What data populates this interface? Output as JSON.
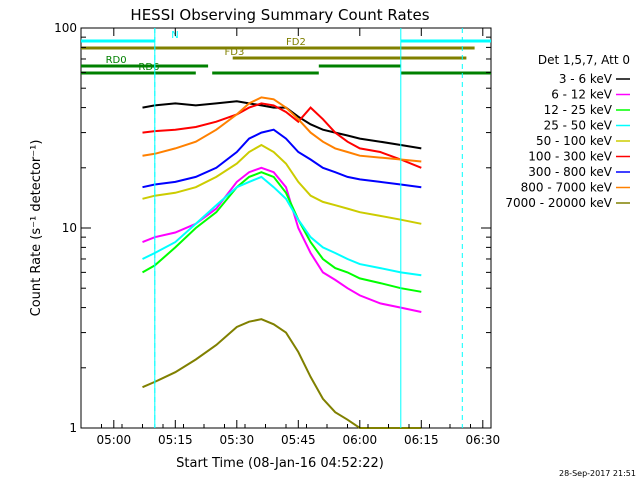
{
  "chart_data": {
    "type": "line",
    "title": "HESSI Observing Summary Count Rates",
    "xlabel": "Start Time (08-Jan-16 04:52:22)",
    "ylabel": "Count Rate (s⁻¹ detector⁻¹)",
    "yscale": "log",
    "ylim": [
      1,
      100
    ],
    "xlim": [
      "04:52",
      "06:32"
    ],
    "x_ticks": [
      "05:00",
      "05:15",
      "05:30",
      "05:45",
      "06:00",
      "06:15",
      "06:30"
    ],
    "y_ticks": [
      "1",
      "10",
      "100"
    ],
    "timestamp": "28-Sep-2017 21:51",
    "legend_header": "Det 1,5,7, Att 0",
    "x_times": [
      "05:07",
      "05:10",
      "05:15",
      "05:20",
      "05:25",
      "05:30",
      "05:33",
      "05:36",
      "05:39",
      "05:42",
      "05:45",
      "05:48",
      "05:51",
      "05:54",
      "05:57",
      "06:00",
      "06:05",
      "06:10",
      "06:15"
    ],
    "series": [
      {
        "name": "3 - 6 keV",
        "color": "#000000",
        "values": [
          40,
          41,
          42,
          41,
          42,
          43,
          42,
          41,
          40,
          40,
          36,
          33,
          31,
          30,
          29,
          28,
          27,
          26,
          25
        ]
      },
      {
        "name": "6 - 12 keV",
        "color": "#ff00ff",
        "values": [
          8.5,
          9,
          9.5,
          10.5,
          12.5,
          17,
          19,
          20,
          19,
          16,
          10,
          7.5,
          6,
          5.5,
          5,
          4.6,
          4.2,
          4,
          3.8
        ]
      },
      {
        "name": "12 - 25 keV",
        "color": "#00ff00",
        "values": [
          6,
          6.5,
          8,
          10,
          12,
          16,
          18,
          19,
          18,
          15,
          11,
          8.5,
          7,
          6.3,
          6,
          5.6,
          5.3,
          5,
          4.8
        ]
      },
      {
        "name": "25 - 50 keV",
        "color": "#00ffff",
        "values": [
          7,
          7.5,
          8.5,
          10.5,
          13,
          16,
          17,
          18,
          16,
          14,
          11,
          9,
          8,
          7.5,
          7,
          6.6,
          6.3,
          6,
          5.8
        ]
      },
      {
        "name": "50 - 100 keV",
        "color": "#cccc00",
        "values": [
          14,
          14.5,
          15,
          16,
          18,
          21,
          24,
          26,
          24,
          21,
          17,
          14.5,
          13.5,
          13,
          12.5,
          12,
          11.5,
          11,
          10.5
        ]
      },
      {
        "name": "100 - 300 keV",
        "color": "#ff0000",
        "values": [
          30,
          30.5,
          31,
          32,
          34,
          37,
          40,
          42,
          41,
          38,
          34,
          40,
          35,
          30,
          27,
          25,
          24,
          22,
          20
        ]
      },
      {
        "name": "300 - 800 keV",
        "color": "#0000ff",
        "values": [
          16,
          16.5,
          17,
          18,
          20,
          24,
          28,
          30,
          31,
          28,
          24,
          22,
          20,
          19,
          18,
          17.5,
          17,
          16.5,
          16
        ]
      },
      {
        "name": "800 - 7000 keV",
        "color": "#ff8000",
        "values": [
          23,
          23.5,
          25,
          27,
          31,
          37,
          42,
          45,
          44,
          40,
          35,
          30,
          27,
          25,
          24,
          23,
          22.5,
          22,
          21.5
        ]
      },
      {
        "name": "7000 - 20000 keV",
        "color": "#808000",
        "values": [
          1.6,
          1.7,
          1.9,
          2.2,
          2.6,
          3.2,
          3.4,
          3.5,
          3.3,
          3,
          2.4,
          1.8,
          1.4,
          1.2,
          1.1,
          1,
          1,
          1,
          1
        ]
      }
    ],
    "annotations": {
      "night": {
        "label": "N",
        "color": "#00ffff",
        "segments": [
          [
            "04:52",
            "05:10"
          ],
          [
            "06:10",
            "06:32"
          ]
        ],
        "dashed_boundaries": [
          "05:10",
          "06:25"
        ]
      },
      "fd2": {
        "label": "FD2",
        "color": "#808000",
        "segments": [
          [
            "04:52",
            "06:28"
          ]
        ]
      },
      "fd3": {
        "label": "FD3",
        "color": "#808000",
        "segments": [
          [
            "05:29",
            "06:26"
          ]
        ]
      },
      "rd0": {
        "label": "RD0",
        "color": "#008000",
        "segments": [
          [
            "04:52",
            "05:23"
          ],
          [
            "05:50",
            "06:10"
          ]
        ]
      },
      "rd6": {
        "label": "RD6",
        "color": "#008000",
        "segments": [
          [
            "04:52",
            "05:20"
          ],
          [
            "05:24",
            "05:50"
          ],
          [
            "06:10",
            "06:32"
          ]
        ]
      }
    }
  }
}
